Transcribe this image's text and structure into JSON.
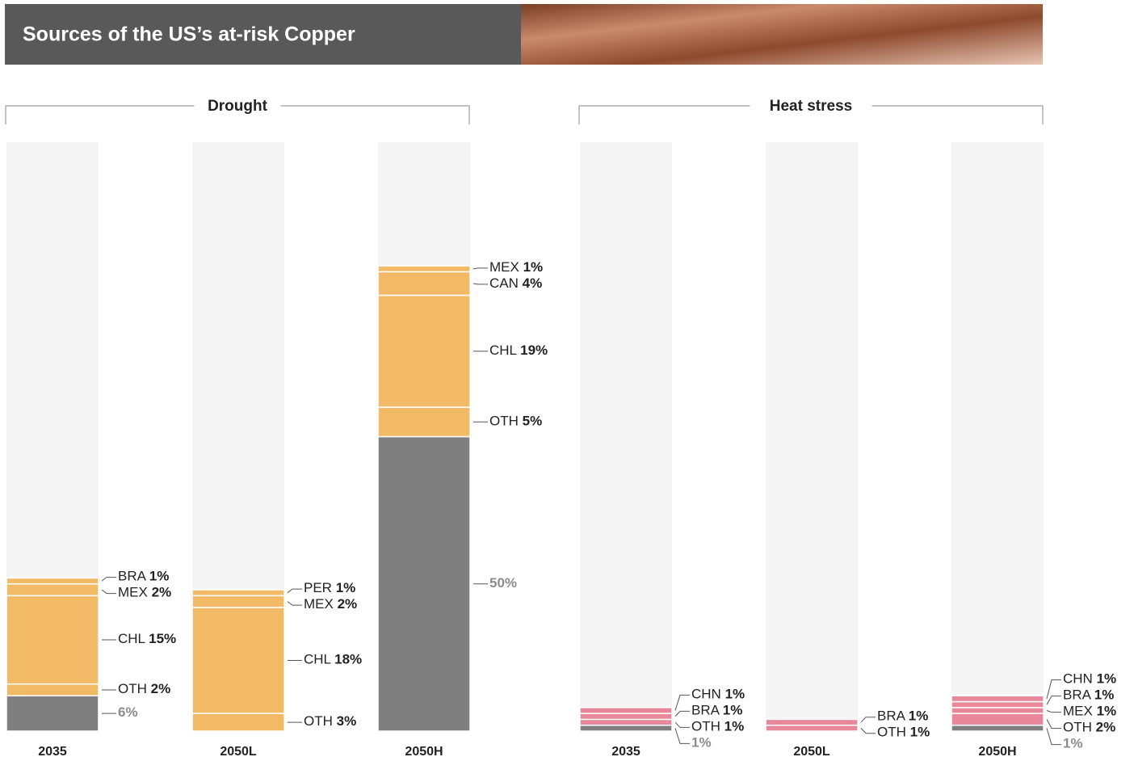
{
  "chart_data": {
    "type": "stacked-bar",
    "title": "Sources of the US’s at-risk Copper",
    "ylim": [
      0,
      100
    ],
    "base_color": "#7f7f7f",
    "groups": [
      {
        "name": "Drought",
        "color": "#f2b966",
        "header_color": "#e8900c",
        "bars": [
          {
            "category": "2035",
            "segments": [
              {
                "value": 6,
                "value_label": "6%"
              },
              {
                "name": "OTH",
                "value": 2,
                "value_label": "2%"
              },
              {
                "name": "CHL",
                "value": 15,
                "value_label": "15%"
              },
              {
                "name": "MEX",
                "value": 2,
                "value_label": "2%"
              },
              {
                "name": "BRA",
                "value": 1,
                "value_label": "1%"
              }
            ]
          },
          {
            "category": "2050L",
            "segments": [
              {
                "name": "OTH",
                "value": 3,
                "value_label": "3%"
              },
              {
                "name": "CHL",
                "value": 18,
                "value_label": "18%"
              },
              {
                "name": "MEX",
                "value": 2,
                "value_label": "2%"
              },
              {
                "name": "PER",
                "value": 1,
                "value_label": "1%"
              }
            ]
          },
          {
            "category": "2050H",
            "segments": [
              {
                "value": 50,
                "value_label": "50%"
              },
              {
                "name": "OTH",
                "value": 5,
                "value_label": "5%"
              },
              {
                "name": "CHL",
                "value": 19,
                "value_label": "19%"
              },
              {
                "name": "CAN",
                "value": 4,
                "value_label": "4%"
              },
              {
                "name": "MEX",
                "value": 1,
                "value_label": "1%"
              }
            ]
          }
        ]
      },
      {
        "name": "Heat stress",
        "color": "#e8879a",
        "header_color": "#d9415f",
        "bars": [
          {
            "category": "2035",
            "segments": [
              {
                "value": 1,
                "value_label": "1%"
              },
              {
                "name": "OTH",
                "value": 1,
                "value_label": "1%"
              },
              {
                "name": "BRA",
                "value": 1,
                "value_label": "1%"
              },
              {
                "name": "CHN",
                "value": 1,
                "value_label": "1%"
              }
            ]
          },
          {
            "category": "2050L",
            "segments": [
              {
                "name": "OTH",
                "value": 1,
                "value_label": "1%"
              },
              {
                "name": "BRA",
                "value": 1,
                "value_label": "1%"
              }
            ]
          },
          {
            "category": "2050H",
            "segments": [
              {
                "value": 1,
                "value_label": "1%"
              },
              {
                "name": "OTH",
                "value": 2,
                "value_label": "2%"
              },
              {
                "name": "MEX",
                "value": 1,
                "value_label": "1%"
              },
              {
                "name": "BRA",
                "value": 1,
                "value_label": "1%"
              },
              {
                "name": "CHN",
                "value": 1,
                "value_label": "1%"
              }
            ]
          }
        ]
      }
    ]
  }
}
